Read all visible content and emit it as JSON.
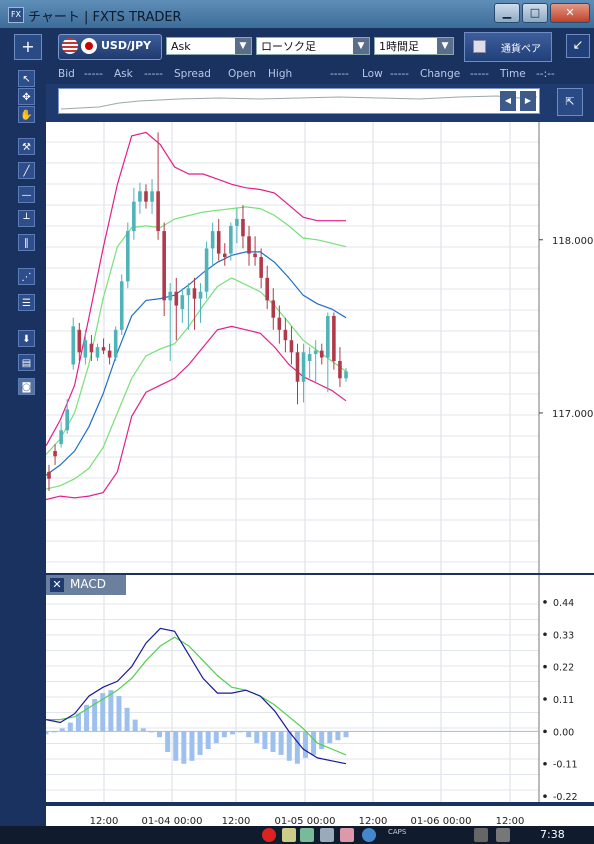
{
  "window": {
    "title": "チャート | FXTS TRADER",
    "icon": "FX",
    "minimize_glyph": "▁",
    "maximize_glyph": "□",
    "close_glyph": "✕"
  },
  "toolbar": {
    "add_glyph": "+",
    "symbol": "USD/JPY",
    "price_type": "Ask",
    "chart_type": "ローソク足",
    "timeframe": "1時間足",
    "currency_button": "通貨ペア",
    "restore_glyph": "↙"
  },
  "info_row": {
    "bid_label": "Bid",
    "bid_value": "-----",
    "ask_label": "Ask",
    "ask_value": "-----",
    "spread_label": "Spread",
    "open_label": "Open",
    "high_label": "High",
    "high_value": "-----",
    "low_label": "Low",
    "low_value": "-----",
    "change_label": "Change",
    "change_value": "-----",
    "time_label": "Time",
    "time_value": "--:--"
  },
  "tools": [
    "cursor-icon",
    "crosshair-icon",
    "hand-icon",
    "pin-icon",
    "trendline-icon",
    "horizontal-line-icon",
    "vertical-line-icon",
    "parallel-lines-icon",
    "fan-icon",
    "fibonacci-icon",
    "download-icon",
    "list-icon",
    "camera-icon"
  ],
  "indicator_panel": {
    "label": "MACD",
    "close_glyph": "✕"
  },
  "colors": {
    "bull": "#4fb3b8",
    "bear": "#b03a4a",
    "bb_outer": "#e0208a",
    "bb_inner": "#78e078",
    "ma": "#1e6fc8",
    "macd_line": "#1a1a9a",
    "signal_line": "#50d050",
    "histogram": "#9ec0ee"
  },
  "chart_data": [
    {
      "type": "candlestick",
      "price_axis_labels": [
        "118.000",
        "117.000"
      ],
      "price_ticks": [
        118.0,
        117.0
      ],
      "ylim": [
        116.07,
        118.68
      ],
      "x_tick_labels": [
        "12:00",
        "01-04 00:00",
        "12:00",
        "01-05 00:00",
        "12:00",
        "01-06 00:00",
        "12:00"
      ],
      "candles": [
        {
          "o": 116.66,
          "h": 116.7,
          "l": 116.55,
          "c": 116.62
        },
        {
          "o": 116.78,
          "h": 116.82,
          "l": 116.7,
          "c": 116.75
        },
        {
          "o": 116.82,
          "h": 116.95,
          "l": 116.8,
          "c": 116.9
        },
        {
          "o": 116.9,
          "h": 117.08,
          "l": 116.88,
          "c": 117.02
        },
        {
          "o": 117.28,
          "h": 117.55,
          "l": 117.25,
          "c": 117.5
        },
        {
          "o": 117.48,
          "h": 117.52,
          "l": 117.3,
          "c": 117.35
        },
        {
          "o": 117.32,
          "h": 117.48,
          "l": 117.28,
          "c": 117.42
        },
        {
          "o": 117.4,
          "h": 117.45,
          "l": 117.3,
          "c": 117.35
        },
        {
          "o": 117.32,
          "h": 117.4,
          "l": 117.3,
          "c": 117.38
        },
        {
          "o": 117.38,
          "h": 117.43,
          "l": 117.34,
          "c": 117.36
        },
        {
          "o": 117.36,
          "h": 117.4,
          "l": 117.28,
          "c": 117.32
        },
        {
          "o": 117.32,
          "h": 117.5,
          "l": 117.3,
          "c": 117.48
        },
        {
          "o": 117.48,
          "h": 117.8,
          "l": 117.45,
          "c": 117.76
        },
        {
          "o": 117.76,
          "h": 118.1,
          "l": 117.72,
          "c": 118.05
        },
        {
          "o": 118.05,
          "h": 118.3,
          "l": 118.0,
          "c": 118.22
        },
        {
          "o": 118.22,
          "h": 118.33,
          "l": 118.15,
          "c": 118.28
        },
        {
          "o": 118.28,
          "h": 118.32,
          "l": 118.18,
          "c": 118.22
        },
        {
          "o": 118.22,
          "h": 118.35,
          "l": 118.15,
          "c": 118.28
        },
        {
          "o": 118.28,
          "h": 118.62,
          "l": 118.0,
          "c": 118.05
        },
        {
          "o": 118.05,
          "h": 118.1,
          "l": 117.56,
          "c": 117.65
        },
        {
          "o": 117.65,
          "h": 117.75,
          "l": 117.3,
          "c": 117.7
        },
        {
          "o": 117.7,
          "h": 117.78,
          "l": 117.42,
          "c": 117.62
        },
        {
          "o": 117.6,
          "h": 117.72,
          "l": 117.52,
          "c": 117.68
        },
        {
          "o": 117.68,
          "h": 117.75,
          "l": 117.48,
          "c": 117.72
        },
        {
          "o": 117.72,
          "h": 117.78,
          "l": 117.48,
          "c": 117.66
        },
        {
          "o": 117.66,
          "h": 117.75,
          "l": 117.52,
          "c": 117.7
        },
        {
          "o": 117.7,
          "h": 117.99,
          "l": 117.66,
          "c": 117.95
        },
        {
          "o": 117.95,
          "h": 118.1,
          "l": 117.85,
          "c": 118.05
        },
        {
          "o": 118.05,
          "h": 118.12,
          "l": 117.88,
          "c": 117.92
        },
        {
          "o": 117.92,
          "h": 117.98,
          "l": 117.85,
          "c": 117.9
        },
        {
          "o": 117.92,
          "h": 118.1,
          "l": 117.88,
          "c": 118.08
        },
        {
          "o": 118.08,
          "h": 118.18,
          "l": 117.98,
          "c": 118.12
        },
        {
          "o": 118.12,
          "h": 118.2,
          "l": 117.95,
          "c": 118.02
        },
        {
          "o": 118.02,
          "h": 118.08,
          "l": 117.85,
          "c": 117.92
        },
        {
          "o": 117.92,
          "h": 118.02,
          "l": 117.85,
          "c": 117.9
        },
        {
          "o": 117.9,
          "h": 117.95,
          "l": 117.72,
          "c": 117.78
        },
        {
          "o": 117.78,
          "h": 117.85,
          "l": 117.6,
          "c": 117.65
        },
        {
          "o": 117.65,
          "h": 117.72,
          "l": 117.48,
          "c": 117.55
        },
        {
          "o": 117.55,
          "h": 117.62,
          "l": 117.4,
          "c": 117.48
        },
        {
          "o": 117.48,
          "h": 117.55,
          "l": 117.35,
          "c": 117.42
        },
        {
          "o": 117.42,
          "h": 117.5,
          "l": 117.28,
          "c": 117.35
        },
        {
          "o": 117.35,
          "h": 117.4,
          "l": 117.05,
          "c": 117.18
        },
        {
          "o": 117.18,
          "h": 117.4,
          "l": 117.06,
          "c": 117.35
        },
        {
          "o": 117.3,
          "h": 117.38,
          "l": 117.2,
          "c": 117.34
        },
        {
          "o": 117.34,
          "h": 117.42,
          "l": 117.18,
          "c": 117.36
        },
        {
          "o": 117.36,
          "h": 117.4,
          "l": 117.28,
          "c": 117.32
        },
        {
          "o": 117.32,
          "h": 117.58,
          "l": 117.12,
          "c": 117.56
        },
        {
          "o": 117.56,
          "h": 117.58,
          "l": 117.25,
          "c": 117.3
        },
        {
          "o": 117.3,
          "h": 117.38,
          "l": 117.15,
          "c": 117.2
        },
        {
          "o": 117.2,
          "h": 117.26,
          "l": 117.18,
          "c": 117.24
        }
      ],
      "bollinger_upper": [
        116.81,
        116.96,
        117.16,
        117.55,
        117.95,
        118.32,
        118.6,
        118.62,
        118.55,
        118.42,
        118.38,
        118.38,
        118.35,
        118.32,
        118.3,
        118.29,
        118.27,
        118.2,
        118.13,
        118.11,
        118.11,
        118.11
      ],
      "bollinger_inner_upper": [
        116.76,
        116.85,
        117.0,
        117.28,
        117.66,
        117.96,
        118.07,
        118.08,
        118.07,
        118.12,
        118.14,
        118.16,
        118.17,
        118.18,
        118.19,
        118.18,
        118.14,
        118.08,
        118.01,
        118.0,
        117.98,
        117.96
      ],
      "moving_average": [
        116.64,
        116.7,
        116.78,
        116.92,
        117.11,
        117.35,
        117.56,
        117.65,
        117.66,
        117.68,
        117.74,
        117.81,
        117.87,
        117.91,
        117.93,
        117.93,
        117.87,
        117.78,
        117.68,
        117.63,
        117.6,
        117.55
      ],
      "bollinger_inner_lower": [
        116.56,
        116.58,
        116.62,
        116.68,
        116.8,
        117.0,
        117.2,
        117.33,
        117.37,
        117.4,
        117.5,
        117.62,
        117.73,
        117.78,
        117.74,
        117.7,
        117.62,
        117.52,
        117.42,
        117.36,
        117.3,
        117.24
      ],
      "bollinger_lower": [
        116.5,
        116.52,
        116.51,
        116.52,
        116.54,
        116.66,
        116.98,
        117.12,
        117.16,
        117.2,
        117.28,
        117.38,
        117.48,
        117.5,
        117.48,
        117.46,
        117.38,
        117.28,
        117.21,
        117.17,
        117.13,
        117.07
      ]
    },
    {
      "type": "macd",
      "name": "MACD",
      "y_tick_labels": [
        "0.44",
        "0.33",
        "0.22",
        "0.11",
        "0.00",
        "-0.11",
        "-0.22"
      ],
      "y_ticks": [
        0.44,
        0.33,
        0.22,
        0.11,
        0.0,
        -0.11,
        -0.22
      ],
      "ylim": [
        -0.24,
        0.46
      ],
      "macd": [
        0.04,
        0.03,
        0.06,
        0.12,
        0.15,
        0.17,
        0.22,
        0.3,
        0.35,
        0.34,
        0.26,
        0.18,
        0.13,
        0.13,
        0.14,
        0.12,
        0.07,
        0.0,
        -0.06,
        -0.09,
        -0.1,
        -0.11
      ],
      "signal": [
        0.04,
        0.04,
        0.05,
        0.08,
        0.11,
        0.14,
        0.18,
        0.24,
        0.29,
        0.32,
        0.29,
        0.24,
        0.19,
        0.15,
        0.14,
        0.12,
        0.09,
        0.05,
        0.01,
        -0.04,
        -0.06,
        -0.08
      ],
      "histogram": [
        -0.01,
        0.0,
        0.01,
        0.03,
        0.06,
        0.09,
        0.11,
        0.13,
        0.14,
        0.12,
        0.08,
        0.04,
        0.01,
        0.0,
        -0.02,
        -0.07,
        -0.1,
        -0.11,
        -0.1,
        -0.08,
        -0.06,
        -0.04,
        -0.02,
        -0.01,
        0.0,
        -0.02,
        -0.04,
        -0.06,
        -0.07,
        -0.08,
        -0.1,
        -0.11,
        -0.09,
        -0.08,
        -0.06,
        -0.04,
        -0.03,
        -0.02
      ]
    }
  ],
  "taskbar": {
    "caps_label": "CAPS",
    "clock": "7:38"
  }
}
